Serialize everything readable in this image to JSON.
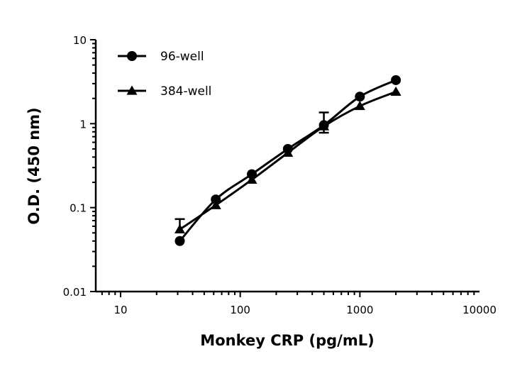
{
  "chart_data": {
    "type": "line",
    "xlabel": "Monkey CRP (pg/mL)",
    "ylabel": "O.D. (450 nm)",
    "xscale": "log",
    "yscale": "log",
    "xlim": [
      6.2,
      10000
    ],
    "ylim": [
      0.01,
      10
    ],
    "x_ticks": [
      "10",
      "100",
      "1000",
      "10000"
    ],
    "y_ticks": [
      "0.01",
      "0.1",
      "1",
      "10"
    ],
    "legend_position": "top-left",
    "grid": false,
    "x": [
      31.25,
      62.5,
      125,
      250,
      500,
      1000,
      2000
    ],
    "series": [
      {
        "name": "96-well",
        "marker": "circle",
        "values": [
          0.04,
          0.125,
          0.25,
          0.5,
          0.96,
          2.1,
          3.3
        ]
      },
      {
        "name": "384-well",
        "marker": "triangle",
        "values": [
          0.055,
          0.107,
          0.215,
          0.45,
          0.93,
          1.62,
          2.4
        ],
        "error_bars": [
          {
            "x": 31.25,
            "high": 0.073
          },
          {
            "x": 500,
            "low": 0.78,
            "high": 1.36
          }
        ]
      }
    ]
  }
}
